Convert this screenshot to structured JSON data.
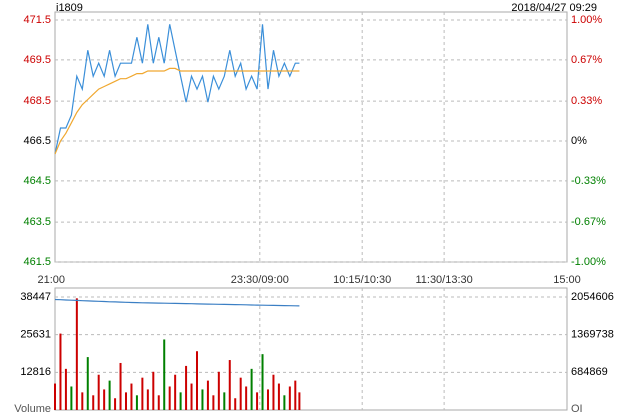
{
  "chart_data": [
    {
      "type": "line",
      "title": "i1809",
      "timestamp": "2018/04/27 09:29",
      "xlim": [
        0,
        375
      ],
      "xticks": [
        {
          "value": 0,
          "label": "21:00"
        },
        {
          "value": 150,
          "label": "23:30/09:00"
        },
        {
          "value": 225,
          "label": "10:15/10:30"
        },
        {
          "value": 285,
          "label": "11:30/13:30"
        },
        {
          "value": 375,
          "label": "15:00"
        }
      ],
      "ylim": [
        461.835,
        471.165
      ],
      "ylabels": [
        "461.5",
        "463.5",
        "464.5",
        "466.5",
        "468.5",
        "469.5",
        "471.5"
      ],
      "y2lim": [
        -1,
        1
      ],
      "y2ticks": [
        {
          "value": -1,
          "label": "-1.00%"
        },
        {
          "value": -0.67,
          "label": "-0.67%"
        },
        {
          "value": -0.33,
          "label": "-0.33%"
        },
        {
          "value": 0,
          "label": "0%"
        },
        {
          "value": 0.33,
          "label": "0.33%"
        },
        {
          "value": 0.67,
          "label": "0.67%"
        },
        {
          "value": 1,
          "label": "1.00%"
        }
      ],
      "up_color": "#cc0000",
      "down_color": "#008000",
      "flat_color": "#000000",
      "grid": true,
      "x": [
        0,
        4,
        8,
        12,
        16,
        20,
        24,
        28,
        32,
        36,
        40,
        44,
        48,
        52,
        56,
        60,
        64,
        68,
        72,
        76,
        80,
        84,
        88,
        92,
        96,
        100,
        104,
        108,
        112,
        116,
        120,
        124,
        128,
        132,
        136,
        140,
        144,
        148,
        152,
        156,
        160,
        164,
        168,
        172,
        176,
        179
      ],
      "series": [
        {
          "color": "#3b8fd9",
          "values": [
            466,
            467,
            467,
            467.5,
            469,
            468.5,
            470,
            469,
            469.5,
            469,
            470,
            469,
            469.5,
            469.5,
            469.5,
            470.5,
            469.5,
            471,
            469.5,
            470.5,
            469.5,
            471,
            470,
            469,
            468,
            469,
            468.5,
            469,
            468,
            469,
            468.5,
            469,
            470,
            469,
            469.5,
            468.5,
            469,
            468.5,
            471,
            468.5,
            470,
            469,
            469.5,
            469,
            469.5,
            469.5
          ]
        },
        {
          "color": "#f0a830",
          "values": [
            466,
            466.5,
            466.8,
            467.2,
            467.6,
            467.9,
            468.1,
            468.3,
            468.5,
            468.6,
            468.7,
            468.8,
            468.9,
            468.9,
            469,
            469.1,
            469.1,
            469.2,
            469.2,
            469.2,
            469.2,
            469.3,
            469.3,
            469.2,
            469.2,
            469.2,
            469.2,
            469.2,
            469.2,
            469.2,
            469.2,
            469.2,
            469.2,
            469.2,
            469.2,
            469.2,
            469.2,
            469.2,
            469.2,
            469.2,
            469.2,
            469.2,
            469.2,
            469.2,
            469.2,
            469.2
          ]
        }
      ]
    },
    {
      "type": "bar",
      "ylabel": "Volume",
      "y2label": "OI",
      "xlim": [
        0,
        375
      ],
      "xgrid": [
        150,
        225,
        285
      ],
      "ylim": [
        0,
        38447
      ],
      "yticks": [
        12816,
        25631,
        38447
      ],
      "y2lim": [
        0,
        2054606
      ],
      "y2ticks": [
        684869,
        1369738,
        2054606
      ],
      "grid": true,
      "x": [
        0,
        4,
        8,
        12,
        16,
        20,
        24,
        28,
        32,
        36,
        40,
        44,
        48,
        52,
        56,
        60,
        64,
        68,
        72,
        76,
        80,
        84,
        88,
        92,
        96,
        100,
        104,
        108,
        112,
        116,
        120,
        124,
        128,
        132,
        136,
        140,
        144,
        148,
        152,
        156,
        160,
        164,
        168,
        172,
        176,
        179
      ],
      "values": [
        9000,
        26000,
        14000,
        8000,
        38000,
        6000,
        18000,
        5000,
        12000,
        7000,
        10000,
        4000,
        16000,
        6000,
        9000,
        5000,
        11000,
        7000,
        13000,
        5000,
        24000,
        8000,
        12000,
        6000,
        15000,
        9000,
        20000,
        7000,
        10000,
        5000,
        13000,
        6000,
        17000,
        4000,
        11000,
        8000,
        14000,
        6000,
        19000,
        7000,
        12000,
        9000,
        5000,
        8000,
        10000,
        6000
      ],
      "bar_colors": [
        "#cc0000",
        "#cc0000",
        "#cc0000",
        "#008000",
        "#cc0000",
        "#cc0000",
        "#008000",
        "#cc0000",
        "#cc0000",
        "#cc0000",
        "#008000",
        "#cc0000",
        "#cc0000",
        "#cc0000",
        "#cc0000",
        "#008000",
        "#cc0000",
        "#cc0000",
        "#cc0000",
        "#cc0000",
        "#008000",
        "#cc0000",
        "#cc0000",
        "#008000",
        "#cc0000",
        "#cc0000",
        "#cc0000",
        "#008000",
        "#cc0000",
        "#cc0000",
        "#cc0000",
        "#008000",
        "#cc0000",
        "#cc0000",
        "#cc0000",
        "#cc0000",
        "#008000",
        "#cc0000",
        "#008000",
        "#cc0000",
        "#cc0000",
        "#cc0000",
        "#008000",
        "#cc0000",
        "#cc0000",
        "#cc0000"
      ],
      "oi": {
        "axis": "y2",
        "color": "#3b7fc4",
        "values": [
          2010000,
          2005000,
          2000000,
          1996000,
          1992000,
          1988000,
          1984000,
          1980000,
          1976000,
          1972000,
          1968000,
          1965000,
          1962000,
          1958000,
          1955000,
          1952000,
          1950000,
          1948000,
          1946000,
          1944000,
          1942000,
          1940000,
          1938000,
          1936000,
          1934000,
          1932000,
          1930000,
          1928000,
          1926000,
          1924000,
          1922000,
          1920000,
          1918000,
          1916000,
          1914000,
          1912000,
          1910000,
          1908000,
          1906000,
          1904000,
          1902000,
          1900000,
          1898000,
          1896000,
          1894000,
          1893000
        ]
      }
    }
  ]
}
